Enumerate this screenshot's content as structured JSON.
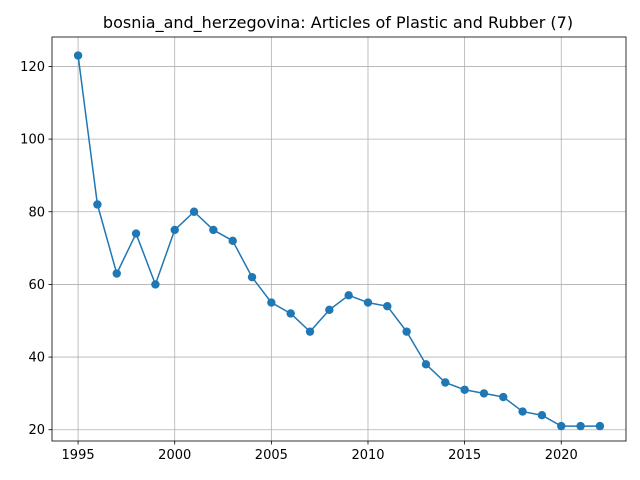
{
  "chart_data": {
    "type": "line",
    "title": "bosnia_and_herzegovina: Articles of Plastic and Rubber (7)",
    "xlabel": "",
    "ylabel": "",
    "x": [
      1995,
      1996,
      1997,
      1998,
      1999,
      2000,
      2001,
      2002,
      2003,
      2004,
      2005,
      2006,
      2007,
      2008,
      2009,
      2010,
      2011,
      2012,
      2013,
      2014,
      2015,
      2016,
      2017,
      2018,
      2019,
      2020,
      2021,
      2022
    ],
    "series": [
      {
        "color": "#1f77b4",
        "values": [
          123,
          82,
          63,
          74,
          60,
          75,
          80,
          75,
          72,
          62,
          55,
          52,
          47,
          53,
          57,
          55,
          54,
          47,
          38,
          33,
          31,
          30,
          29,
          25,
          24,
          21,
          21,
          21
        ]
      }
    ],
    "xlim": [
      1993.65,
      2023.35
    ],
    "ylim": [
      16.9,
      128.1
    ],
    "xticks": [
      "1995",
      "2000",
      "2005",
      "2010",
      "2015",
      "2020"
    ],
    "yticks": [
      "20",
      "40",
      "60",
      "80",
      "100",
      "120"
    ],
    "grid": true,
    "marker": "circle"
  }
}
